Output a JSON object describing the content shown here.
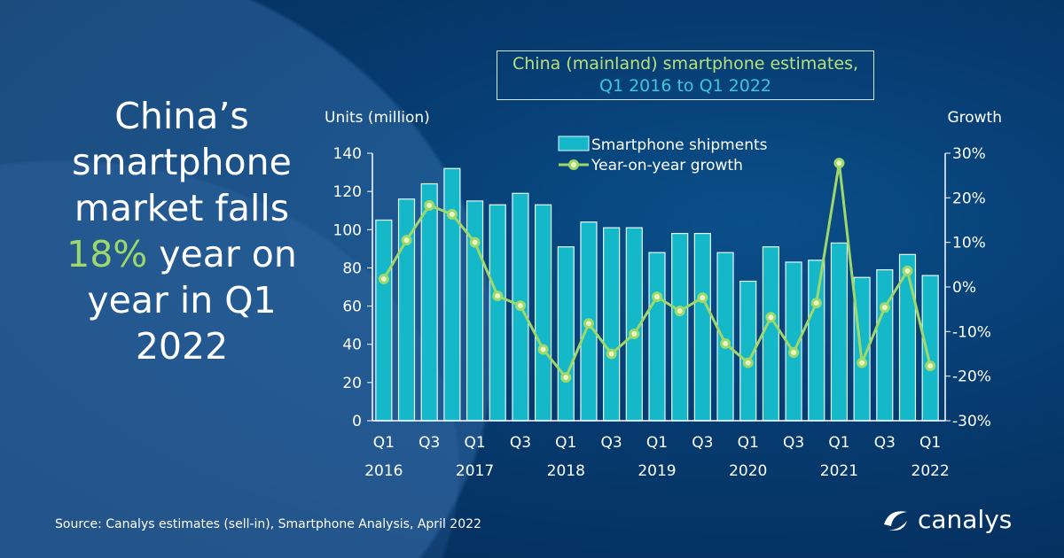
{
  "headline": {
    "line1": "China’s",
    "line2": "smartphone",
    "line3": "market falls",
    "highlight": "18%",
    "line4_rest": " year on",
    "line5": "year in Q1",
    "line6": "2022"
  },
  "title": {
    "line1": "China (mainland) smartphone estimates,",
    "line2": "Q1 2016 to Q1 2022"
  },
  "source": "Source: Canalys estimates (sell-in), Smartphone Analysis, April 2022",
  "logo": "canalys",
  "colors": {
    "bar": "#14b8c8",
    "line": "#9fd86a",
    "title1": "#b8e07e",
    "title2": "#3fc6dc"
  },
  "chart_data": {
    "type": "bar+line",
    "title": "China (mainland) smartphone estimates, Q1 2016 to Q1 2022",
    "ylabel": "Units (million)",
    "y2label": "Growth",
    "ylim": [
      0,
      140
    ],
    "y2lim": [
      -30,
      30
    ],
    "yticks": [
      "0",
      "20",
      "40",
      "60",
      "80",
      "100",
      "120",
      "140"
    ],
    "y2ticks": [
      "-30%",
      "-20%",
      "-10%",
      "0%",
      "10%",
      "20%",
      "30%"
    ],
    "xtick_labels": [
      {
        "q": "Q1",
        "y": "2016"
      },
      {
        "q": "Q3",
        "y": ""
      },
      {
        "q": "Q1",
        "y": "2017"
      },
      {
        "q": "Q3",
        "y": ""
      },
      {
        "q": "Q1",
        "y": "2018"
      },
      {
        "q": "Q3",
        "y": ""
      },
      {
        "q": "Q1",
        "y": "2019"
      },
      {
        "q": "Q3",
        "y": ""
      },
      {
        "q": "Q1",
        "y": "2020"
      },
      {
        "q": "Q3",
        "y": ""
      },
      {
        "q": "Q1",
        "y": "2021"
      },
      {
        "q": "Q3",
        "y": ""
      },
      {
        "q": "Q1",
        "y": "2022"
      }
    ],
    "categories": [
      "Q1 2016",
      "Q2 2016",
      "Q3 2016",
      "Q4 2016",
      "Q1 2017",
      "Q2 2017",
      "Q3 2017",
      "Q4 2017",
      "Q1 2018",
      "Q2 2018",
      "Q3 2018",
      "Q4 2018",
      "Q1 2019",
      "Q2 2019",
      "Q3 2019",
      "Q4 2019",
      "Q1 2020",
      "Q2 2020",
      "Q3 2020",
      "Q4 2020",
      "Q1 2021",
      "Q2 2021",
      "Q3 2021",
      "Q4 2021",
      "Q1 2022"
    ],
    "series": [
      {
        "name": "Smartphone shipments",
        "type": "bar",
        "values": [
          105,
          116,
          124,
          132,
          115,
          113,
          119,
          113,
          91,
          104,
          101,
          101,
          88,
          98,
          98,
          88,
          73,
          91,
          83,
          84,
          93,
          75,
          79,
          87,
          76
        ]
      },
      {
        "name": "Year-on-year growth",
        "type": "line",
        "axis": "right",
        "values": [
          1.8,
          10.5,
          18.3,
          16.3,
          10,
          -2,
          -4.2,
          -14,
          -20.3,
          -8.2,
          -15,
          -10.5,
          -2.2,
          -5.4,
          -2.4,
          -12.7,
          -17,
          -6.8,
          -14.7,
          -3.6,
          27.8,
          -17,
          -4.6,
          3.6,
          -17.7
        ]
      }
    ],
    "legend": "top-center"
  }
}
